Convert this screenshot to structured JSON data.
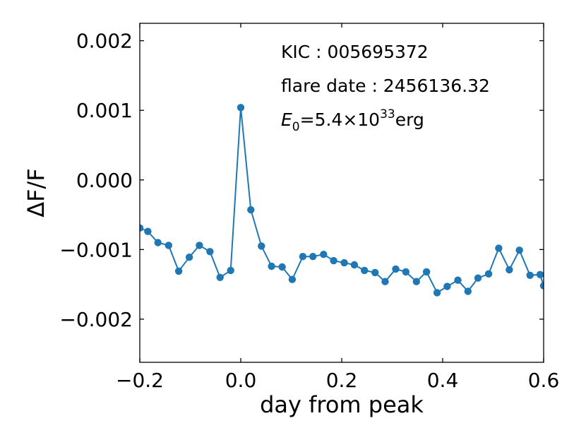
{
  "chart_data": {
    "type": "line",
    "title": "",
    "xlabel": "day from peak",
    "ylabel": "ΔF/F",
    "xlim": [
      -0.2,
      0.6
    ],
    "ylim": [
      -0.00262,
      0.00225
    ],
    "xticks": [
      -0.2,
      0.0,
      0.2,
      0.4,
      0.6
    ],
    "xtick_labels": [
      "−0.2",
      "0.0",
      "0.2",
      "0.4",
      "0.6"
    ],
    "yticks": [
      0.002,
      0.001,
      0.0,
      -0.001,
      -0.002
    ],
    "ytick_labels": [
      "0.002",
      "0.001",
      "0.000",
      "−0.001",
      "−0.002"
    ],
    "grid": false,
    "color": "#1f77b4",
    "annotations": {
      "kic": "KIC : 005695372",
      "flare_date": "flare date : 2456136.32",
      "energy_symbol": "E",
      "energy_subscript": "0",
      "energy_value": "=5.4×10",
      "energy_exponent": "33",
      "energy_unit": "erg"
    },
    "series": [
      {
        "x": [
          -0.2,
          -0.184,
          -0.164,
          -0.143,
          -0.123,
          -0.102,
          -0.082,
          -0.061,
          -0.041,
          -0.02,
          0.0,
          0.02,
          0.041,
          0.061,
          0.082,
          0.102,
          0.123,
          0.143,
          0.164,
          0.184,
          0.205,
          0.225,
          0.245,
          0.266,
          0.286,
          0.307,
          0.327,
          0.348,
          0.368,
          0.389,
          0.409,
          0.43,
          0.45,
          0.47,
          0.491,
          0.511,
          0.532,
          0.552,
          0.573,
          0.593,
          0.6
        ],
        "y": [
          -0.00069,
          -0.00074,
          -0.0009,
          -0.00094,
          -0.00131,
          -0.00111,
          -0.00094,
          -0.00103,
          -0.0014,
          -0.0013,
          0.00104,
          -0.00043,
          -0.00095,
          -0.00124,
          -0.00125,
          -0.00143,
          -0.0011,
          -0.0011,
          -0.00107,
          -0.00116,
          -0.00119,
          -0.00122,
          -0.0013,
          -0.00133,
          -0.00146,
          -0.00128,
          -0.00132,
          -0.00146,
          -0.00132,
          -0.00162,
          -0.00153,
          -0.00144,
          -0.0016,
          -0.00141,
          -0.00135,
          -0.00098,
          -0.00129,
          -0.00101,
          -0.00137,
          -0.00136,
          -0.00152
        ]
      }
    ]
  }
}
